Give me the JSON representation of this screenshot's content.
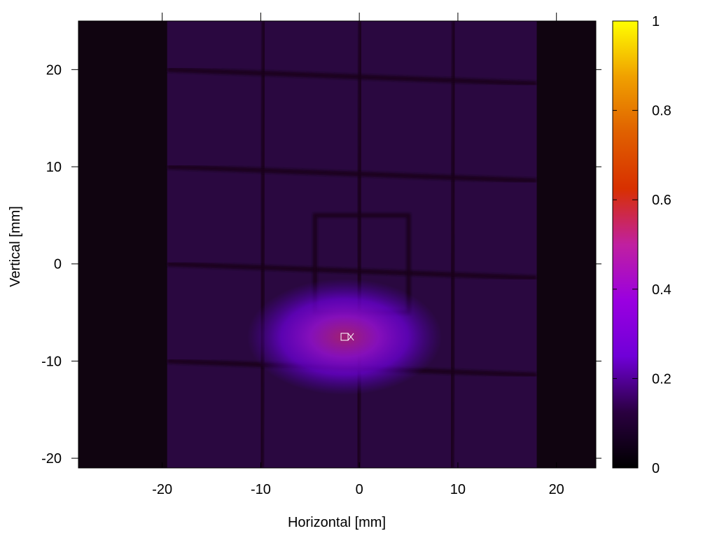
{
  "chart_data": {
    "type": "heatmap",
    "title": "",
    "xlabel": "Horizontal [mm]",
    "ylabel": "Vertical [mm]",
    "xlim": [
      -28.5,
      24
    ],
    "ylim": [
      -21,
      25
    ],
    "xticks": [
      -20,
      -10,
      0,
      10,
      20
    ],
    "yticks": [
      -20,
      -10,
      0,
      10,
      20
    ],
    "colorbar": {
      "range": [
        0,
        1
      ],
      "ticks": [
        0,
        0.2,
        0.4,
        0.6,
        0.8,
        1
      ],
      "tick_labels": [
        "0",
        "0.2",
        "0.4",
        "0.6",
        "0.8",
        "1"
      ],
      "colormap": [
        "#000000",
        "#2a0040",
        "#7000d8",
        "#9a00e0",
        "#c020a0",
        "#d83000",
        "#e06000",
        "#f0a000",
        "#ffff00"
      ]
    },
    "image": {
      "illuminated_x_range": [
        -19.5,
        18
      ],
      "background_level": 0.06,
      "grid_lines_x": [
        -9.8,
        0,
        9.5
      ],
      "grid_lines_y": [
        20,
        10,
        0,
        -10
      ],
      "inner_square": {
        "x": [
          -4.5,
          5
        ],
        "y": [
          -5,
          5
        ]
      },
      "beam_spot": {
        "x": -1.5,
        "y": -7.5,
        "peak": 0.45,
        "sigma_x": 5.2,
        "sigma_y": 2.6
      },
      "marker": {
        "x": -1.5,
        "y": -7.5
      }
    }
  }
}
